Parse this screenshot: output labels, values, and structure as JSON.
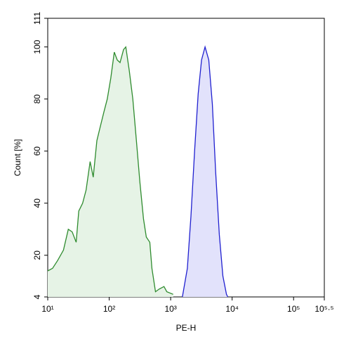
{
  "chart_data": {
    "type": "area",
    "xlabel": "PE-H",
    "ylabel": "Count [%]",
    "xscale": "log",
    "xlim": [
      10,
      316228
    ],
    "xticks": [
      {
        "value": 10,
        "label": "10¹"
      },
      {
        "value": 100,
        "label": "10²"
      },
      {
        "value": 1000,
        "label": "10³"
      },
      {
        "value": 10000,
        "label": "10⁴"
      },
      {
        "value": 100000,
        "label": "10⁵"
      },
      {
        "value": 316228,
        "label": "10⁵·⁵"
      }
    ],
    "ylim": [
      4,
      111
    ],
    "yticks": [
      4,
      20,
      40,
      60,
      80,
      100,
      111
    ],
    "series": [
      {
        "color": "#2e8b2e",
        "fill": "#e6f3e6",
        "x": [
          10,
          12,
          14.5,
          18,
          21.6,
          25,
          29,
          32,
          37,
          42,
          49,
          55,
          63,
          71,
          82,
          93,
          106,
          121,
          135,
          150,
          171,
          186,
          212,
          242,
          277,
          316,
          361,
          401,
          458,
          496,
          566,
          647,
          778,
          866,
          1100
        ],
        "values": [
          14,
          15,
          18,
          22,
          30,
          29,
          25,
          37,
          40,
          45,
          56,
          50,
          64,
          69,
          75,
          80,
          88,
          98,
          95,
          94,
          99,
          100,
          91,
          80,
          64,
          48,
          34,
          27,
          25,
          15,
          6,
          7,
          8,
          6,
          5
        ]
      },
      {
        "color": "#2020d0",
        "fill": "#e2e2fb",
        "x": [
          1550,
          1870,
          2140,
          2450,
          2800,
          3180,
          3630,
          4170,
          4770,
          5400,
          6190,
          7080,
          8090,
          8500
        ],
        "values": [
          4,
          15,
          35,
          60,
          82,
          95,
          100,
          95,
          78,
          52,
          28,
          12,
          5,
          4
        ]
      }
    ]
  }
}
